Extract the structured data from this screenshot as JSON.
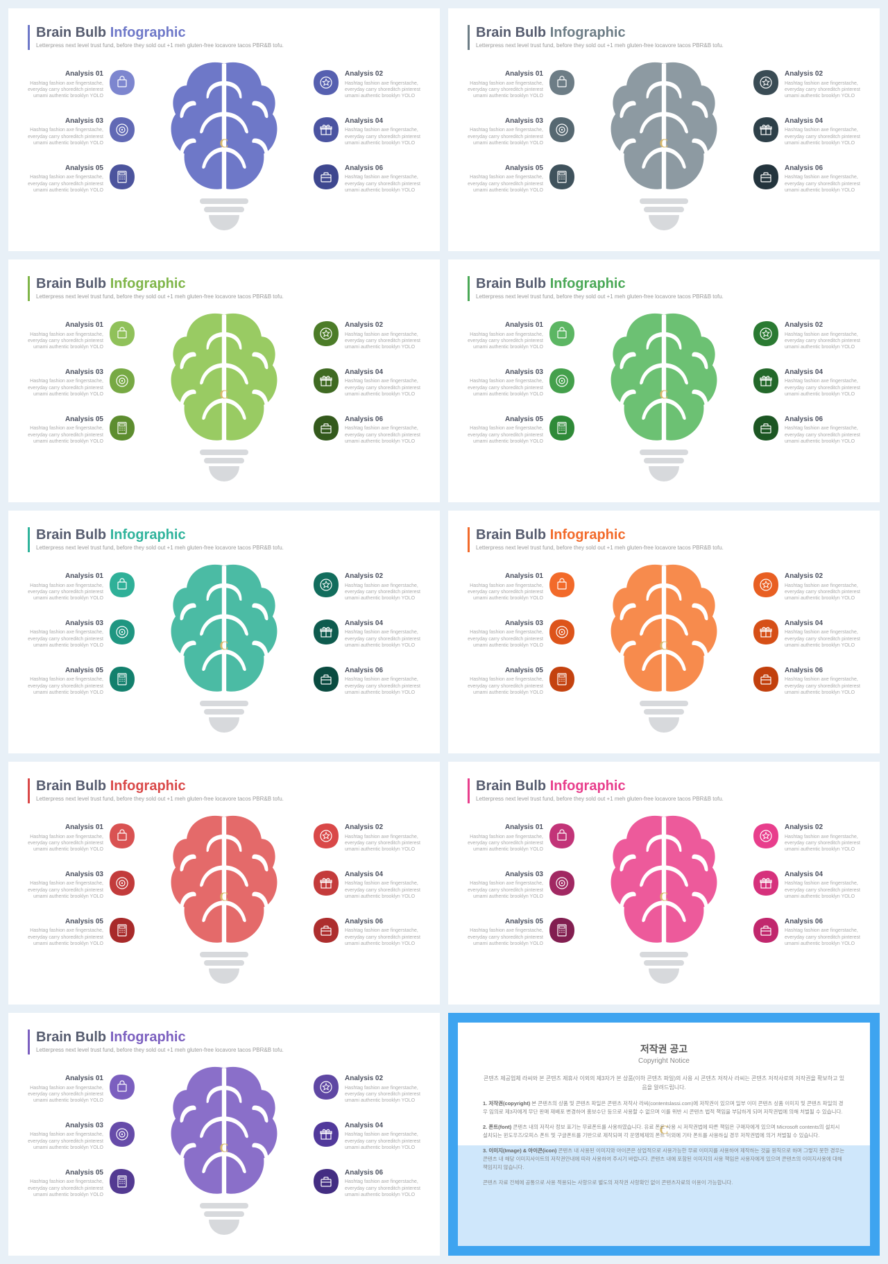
{
  "common": {
    "title_main": "Brain Bulb",
    "title_accent": "Infographic",
    "subtitle": "Letterpress next level trust fund, before they sold out +1 meh gluten-free locavore tacos PBR&B tofu.",
    "item_body": "Hashtag fashion axe fingerstache, everyday carry shoreditch pinterest umami authentic brooklyn YOLO",
    "item_titles": [
      "Analysis 01",
      "Analysis 02",
      "Analysis 03",
      "Analysis 04",
      "Analysis 05",
      "Analysis 06"
    ],
    "bulb_base_color": "#d7d9dc",
    "watermark": "C"
  },
  "icons": [
    "cart",
    "star",
    "target",
    "gift",
    "calc",
    "briefcase"
  ],
  "slides": [
    {
      "accent": "#6e78c8",
      "title_accent_color": "#6e78c8",
      "brain_left": "#6e78c8",
      "brain_right": "#6e78c8",
      "blobs_left": [
        "#7d86cf",
        "#6169b5",
        "#4c549d"
      ],
      "blobs_right": [
        "#5660b0",
        "#4b54a1",
        "#3e478f"
      ]
    },
    {
      "accent": "#6d7d86",
      "title_accent_color": "#6d7d86",
      "brain_left": "#8d9aa2",
      "brain_right": "#8d9aa2",
      "blobs_left": [
        "#6d7d86",
        "#566871",
        "#3f525c"
      ],
      "blobs_right": [
        "#3a4c55",
        "#2e4049",
        "#23343d"
      ]
    },
    {
      "accent": "#7fb548",
      "title_accent_color": "#7fb548",
      "brain_left": "#99cb63",
      "brain_right": "#99cb63",
      "blobs_left": [
        "#90c15a",
        "#77a944",
        "#5d8d2f"
      ],
      "blobs_right": [
        "#4c7c28",
        "#3f6a22",
        "#33591c"
      ]
    },
    {
      "accent": "#4aa856",
      "title_accent_color": "#4aa856",
      "brain_left": "#6cc173",
      "brain_right": "#6cc173",
      "blobs_left": [
        "#5cb663",
        "#44a04c",
        "#2f8a38"
      ],
      "blobs_right": [
        "#2a7a32",
        "#23682a",
        "#1c5623"
      ]
    },
    {
      "accent": "#2fb39b",
      "title_accent_color": "#2fb39b",
      "brain_left": "#4bbba4",
      "brain_right": "#4bbba4",
      "blobs_left": [
        "#2fb098",
        "#1f9681",
        "#13806d"
      ],
      "blobs_right": [
        "#126d5d",
        "#0e5b4e",
        "#0a4b40"
      ]
    },
    {
      "accent": "#f26a2a",
      "title_accent_color": "#f26a2a",
      "brain_left": "#f78b4d",
      "brain_right": "#f78b4d",
      "blobs_left": [
        "#f26a2a",
        "#dd541a",
        "#c4420f"
      ],
      "blobs_right": [
        "#e85f22",
        "#d64f17",
        "#c2400d"
      ]
    },
    {
      "accent": "#d94848",
      "title_accent_color": "#d94848",
      "brain_left": "#e46a6a",
      "brain_right": "#e46a6a",
      "blobs_left": [
        "#d95252",
        "#c23b3b",
        "#a82a2a"
      ],
      "blobs_right": [
        "#d94848",
        "#c43b3b",
        "#ad2e2e"
      ]
    },
    {
      "accent": "#e83e8c",
      "title_accent_color": "#e83e8c",
      "brain_left": "#ed5a9b",
      "brain_right": "#ed5a9b",
      "blobs_left": [
        "#c23478",
        "#a12862",
        "#821e50"
      ],
      "blobs_right": [
        "#e83e8c",
        "#d6317c",
        "#c1276d"
      ]
    },
    {
      "accent": "#7b5fbf",
      "title_accent_color": "#7b5fbf",
      "brain_left": "#8a6fc9",
      "brain_right": "#8a6fc9",
      "blobs_left": [
        "#7b5fbf",
        "#664ba9",
        "#533a92"
      ],
      "blobs_right": [
        "#5f47a3",
        "#51399b",
        "#432d82"
      ]
    }
  ],
  "copyright": {
    "border_color": "#3ea4f0",
    "bottom_bg": "#cfe7fb",
    "title": "저작권 공고",
    "subtitle": "Copyright Notice",
    "intro": "콘텐츠 제공업체 라씨와 본 콘텐츠 제휴사 이외의 제3자가 본 상품(이하 콘텐츠 파일)의 사용 시 콘텐츠 저작사 라씨는 콘텐츠 저작사로의 저작권을 확보하고 있음을 알려드립니다.",
    "sections": [
      {
        "head": "1. 저작권(copyright)",
        "body": "본 콘텐츠의 상품 및 콘텐츠 파일은 콘텐츠 저작사 라씨(contentslassi.com)에 저작권이 있으며 일부 이미 콘텐츠 상품 이미지 및 콘텐츠 파일의 경우 임의로 제3자에게 무단 판매 재배포 변경하여 홍보수단 등으로 사용할 수 없으며 이를 위반 시 콘텐츠 법적 책임을 부담하게 되며 저작권법에 의해 처벌될 수 있습니다."
      },
      {
        "head": "2. 폰트(font)",
        "body": "콘텐츠 내의 저작사 정보 표기는 무료폰트를 사용하였습니다. 유료 폰트 사용 시 저작권법에 따른 책임은 구매자에게 있으며 Microsoft contents의 설치시 설치되는 윈도우즈/오피스 폰트 및 구글폰트를 기반으로 제작되며 각 운영체제의 폰트 이외에 기타 폰트를 사용하실 경우 저작권법에 의거 처벌될 수 있습니다."
      },
      {
        "head": "3. 이미지(Image) & 아이콘(icon)",
        "body": "콘텐츠 내 사용된 이미지와 아이콘은 상업적으로 사용가능한 무료 이미지를 사용하여 제작하는 것을 원칙으로 하며 그렇지 못한 경우는 콘텐츠 내 해당 이미지사이트의 저작권안내에 따라 사용하여 주시기 바랍니다. 콘텐츠 내에 포함된 이미지의 사용 책임은 사용자에게 있으며 콘텐츠의 이미지사용에 대해 책임지지 않습니다."
      }
    ],
    "footer": "콘텐츠 자료 전체에 공통으로 사용 적용되는 사항으로 별도의 저작권 사항확인 없이 콘텐츠자료의 이용이 가능합니다."
  }
}
